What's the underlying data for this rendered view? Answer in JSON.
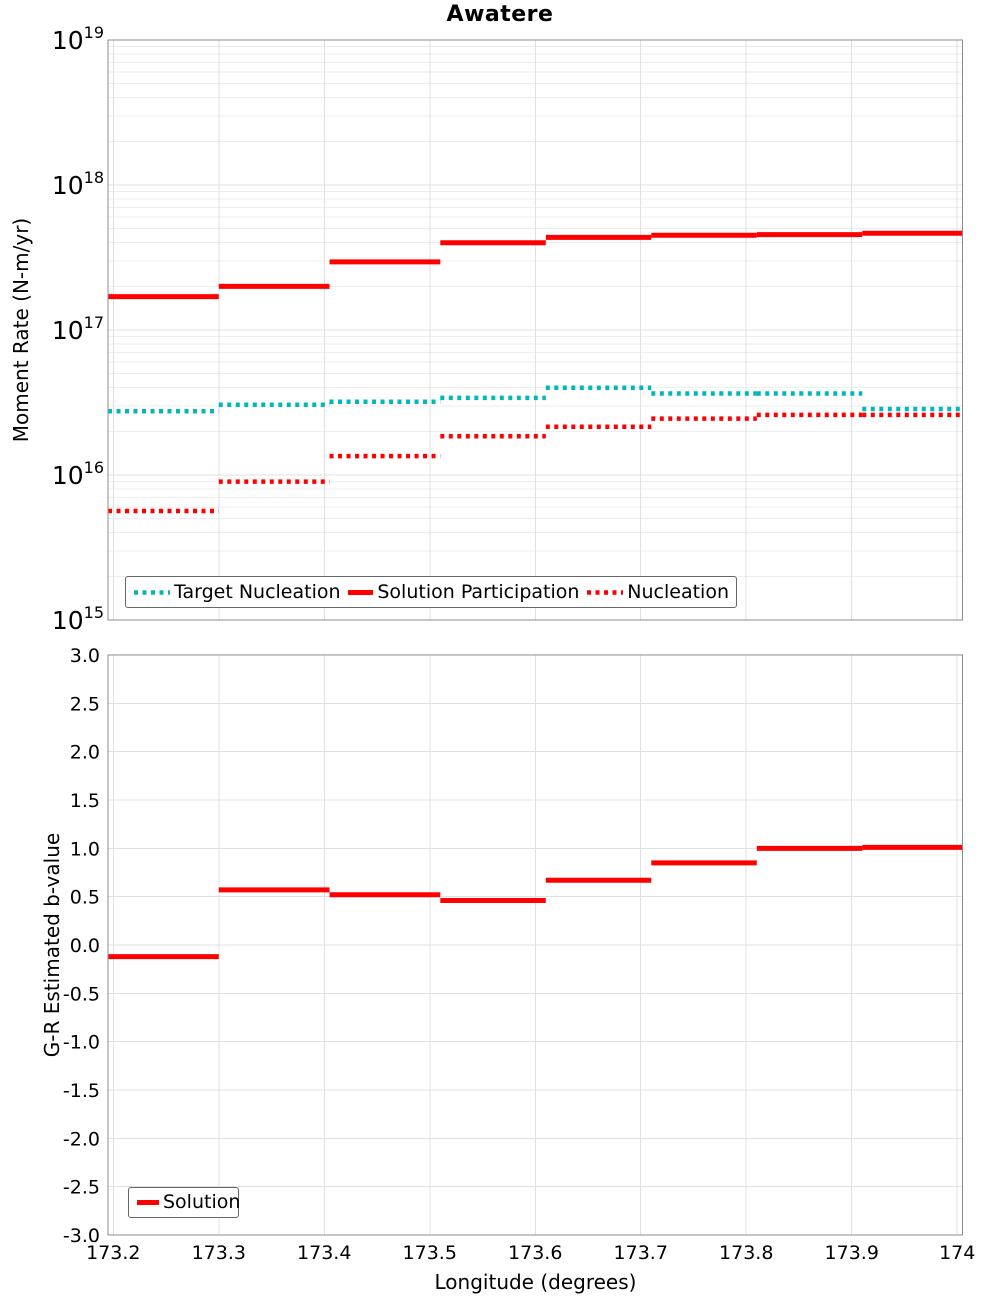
{
  "title": "Awatere",
  "colors": {
    "red": "#ff0000",
    "teal": "#00b8b8",
    "grid_major": "#e0e0e0",
    "grid_minor": "#eeeeee",
    "spine": "#8c8c8c",
    "text": "#000000",
    "background": "#ffffff"
  },
  "x_axis": {
    "label": "Longitude (degrees)",
    "tick_values": [
      173.2,
      173.3,
      173.4,
      173.5,
      173.6,
      173.7,
      173.8,
      173.9,
      174
    ],
    "tick_labels": [
      "173.2",
      "173.3",
      "173.4",
      "173.5",
      "173.6",
      "173.7",
      "173.8",
      "173.9",
      "174"
    ],
    "range": [
      173.195,
      174.005
    ]
  },
  "top_plot": {
    "ylabel": "Moment Rate (N-m/yr)",
    "y_tick_base": "10",
    "y_tick_exponents": [
      "19",
      "18",
      "17",
      "16",
      "15"
    ],
    "legend_labels": [
      "Target Nucleation",
      "Solution Participation",
      "Nucleation"
    ]
  },
  "bottom_plot": {
    "ylabel": "G-R Estimated b-value",
    "y_tick_labels": [
      "3.0",
      "2.5",
      "2.0",
      "1.5",
      "1.0",
      "0.5",
      "0.0",
      "-0.5",
      "-1.0",
      "-1.5",
      "-2.0",
      "-2.5",
      "-3.0"
    ],
    "y_tick_values": [
      3.0,
      2.5,
      2.0,
      1.5,
      1.0,
      0.5,
      0.0,
      -0.5,
      -1.0,
      -1.5,
      -2.0,
      -2.5,
      -3.0
    ],
    "legend_labels": [
      "Solution"
    ]
  },
  "chart_data": [
    {
      "type": "line",
      "subtype": "step-segments",
      "title": "Awatere",
      "xlabel": "Longitude (degrees)",
      "ylabel": "Moment Rate (N-m/yr)",
      "yscale": "log",
      "ylim": [
        1000000000000000.0,
        1e+19
      ],
      "xlim": [
        173.195,
        174.005
      ],
      "grid": true,
      "legend_position": "lower left",
      "x_edges": [
        173.195,
        173.3,
        173.405,
        173.51,
        173.61,
        173.71,
        173.81,
        173.91,
        174.005
      ],
      "series": [
        {
          "name": "Target Nucleation",
          "style": "dotted",
          "color": "#00b8b8",
          "values": [
            2.75e+16,
            3.05e+16,
            3.2e+16,
            3.4e+16,
            4e+16,
            3.65e+16,
            3.65e+16,
            2.85e+16
          ]
        },
        {
          "name": "Solution Participation",
          "style": "solid",
          "color": "#ff0000",
          "values": [
            1.7e+17,
            2e+17,
            2.95e+17,
            4e+17,
            4.35e+17,
            4.5e+17,
            4.55e+17,
            4.65e+17
          ]
        },
        {
          "name": "Nucleation",
          "style": "dotted",
          "color": "#ff0000",
          "values": [
            5650000000000000.0,
            9000000000000000.0,
            1.35e+16,
            1.85e+16,
            2.15e+16,
            2.45e+16,
            2.6e+16,
            2.6e+16
          ]
        }
      ]
    },
    {
      "type": "line",
      "subtype": "step-segments",
      "xlabel": "Longitude (degrees)",
      "ylabel": "G-R Estimated b-value",
      "yscale": "linear",
      "ylim": [
        -3,
        3
      ],
      "xlim": [
        173.195,
        174.005
      ],
      "grid": true,
      "legend_position": "lower left",
      "x_edges": [
        173.195,
        173.3,
        173.405,
        173.51,
        173.61,
        173.71,
        173.81,
        173.91,
        174.005
      ],
      "series": [
        {
          "name": "Solution",
          "style": "solid",
          "color": "#ff0000",
          "values": [
            -0.12,
            0.57,
            0.52,
            0.46,
            0.67,
            0.85,
            1.0,
            1.01
          ]
        }
      ]
    }
  ]
}
